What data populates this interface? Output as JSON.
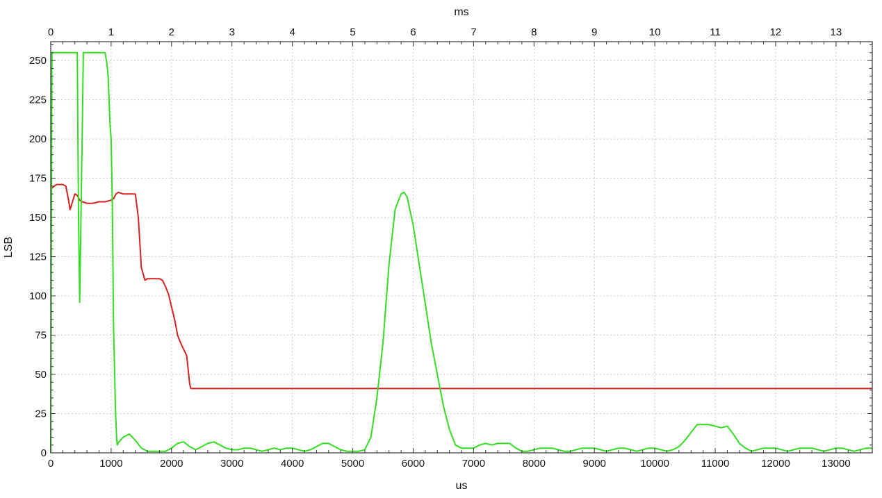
{
  "chart_data": {
    "type": "line",
    "title": "",
    "xlabel": "us",
    "x2label": "ms",
    "ylabel": "LSB",
    "xlim": [
      0,
      13600
    ],
    "x2lim": [
      0,
      13.6
    ],
    "ylim": [
      0,
      262
    ],
    "grid": true,
    "legend": "none",
    "x_ticks": [
      0,
      1000,
      2000,
      3000,
      4000,
      5000,
      6000,
      7000,
      8000,
      9000,
      10000,
      11000,
      12000,
      13000
    ],
    "x2_ticks": [
      0,
      1,
      2,
      3,
      4,
      5,
      6,
      7,
      8,
      9,
      10,
      11,
      12,
      13
    ],
    "y_ticks": [
      0,
      25,
      50,
      75,
      100,
      125,
      150,
      175,
      200,
      225,
      250
    ],
    "series": [
      {
        "color": "#d42020",
        "points": [
          [
            0,
            168
          ],
          [
            60,
            170
          ],
          [
            100,
            171
          ],
          [
            200,
            171
          ],
          [
            250,
            170
          ],
          [
            300,
            160
          ],
          [
            320,
            155
          ],
          [
            360,
            160
          ],
          [
            400,
            165
          ],
          [
            440,
            164
          ],
          [
            480,
            161
          ],
          [
            520,
            160
          ],
          [
            600,
            159
          ],
          [
            700,
            159
          ],
          [
            800,
            160
          ],
          [
            900,
            160
          ],
          [
            1000,
            161
          ],
          [
            1040,
            162
          ],
          [
            1080,
            165
          ],
          [
            1120,
            166
          ],
          [
            1200,
            165
          ],
          [
            1300,
            165
          ],
          [
            1400,
            165
          ],
          [
            1450,
            150
          ],
          [
            1500,
            118
          ],
          [
            1560,
            110
          ],
          [
            1600,
            111
          ],
          [
            1700,
            111
          ],
          [
            1800,
            111
          ],
          [
            1850,
            110
          ],
          [
            1900,
            106
          ],
          [
            1950,
            101
          ],
          [
            2000,
            93
          ],
          [
            2050,
            85
          ],
          [
            2100,
            75
          ],
          [
            2150,
            70
          ],
          [
            2200,
            66
          ],
          [
            2250,
            62
          ],
          [
            2300,
            44
          ],
          [
            2320,
            41
          ],
          [
            3000,
            41
          ],
          [
            4000,
            41
          ],
          [
            5000,
            41
          ],
          [
            6000,
            41
          ],
          [
            7000,
            41
          ],
          [
            8000,
            41
          ],
          [
            9000,
            41
          ],
          [
            10000,
            41
          ],
          [
            11000,
            41
          ],
          [
            12000,
            41
          ],
          [
            13000,
            41
          ],
          [
            13600,
            41
          ]
        ]
      },
      {
        "color": "#33dd22",
        "points": [
          [
            0,
            0
          ],
          [
            20,
            255
          ],
          [
            100,
            255
          ],
          [
            200,
            255
          ],
          [
            300,
            255
          ],
          [
            400,
            255
          ],
          [
            440,
            255
          ],
          [
            450,
            200
          ],
          [
            460,
            150
          ],
          [
            480,
            96
          ],
          [
            500,
            150
          ],
          [
            520,
            200
          ],
          [
            540,
            255
          ],
          [
            600,
            255
          ],
          [
            700,
            255
          ],
          [
            800,
            255
          ],
          [
            900,
            255
          ],
          [
            930,
            248
          ],
          [
            950,
            240
          ],
          [
            980,
            210
          ],
          [
            1000,
            200
          ],
          [
            1020,
            160
          ],
          [
            1040,
            80
          ],
          [
            1070,
            30
          ],
          [
            1090,
            10
          ],
          [
            1100,
            5
          ],
          [
            1130,
            7
          ],
          [
            1200,
            10
          ],
          [
            1300,
            12
          ],
          [
            1400,
            8
          ],
          [
            1500,
            3
          ],
          [
            1600,
            1
          ],
          [
            1700,
            1
          ],
          [
            1800,
            1
          ],
          [
            1900,
            1
          ],
          [
            2000,
            3
          ],
          [
            2100,
            6
          ],
          [
            2200,
            7
          ],
          [
            2300,
            4
          ],
          [
            2400,
            2
          ],
          [
            2500,
            4
          ],
          [
            2600,
            6
          ],
          [
            2700,
            7
          ],
          [
            2800,
            5
          ],
          [
            2900,
            3
          ],
          [
            3000,
            2
          ],
          [
            3100,
            2
          ],
          [
            3200,
            3
          ],
          [
            3300,
            3
          ],
          [
            3400,
            2
          ],
          [
            3500,
            1
          ],
          [
            3600,
            2
          ],
          [
            3700,
            3
          ],
          [
            3800,
            2
          ],
          [
            3900,
            3
          ],
          [
            4000,
            3
          ],
          [
            4100,
            2
          ],
          [
            4200,
            1
          ],
          [
            4300,
            2
          ],
          [
            4400,
            4
          ],
          [
            4500,
            6
          ],
          [
            4600,
            6
          ],
          [
            4700,
            4
          ],
          [
            4800,
            2
          ],
          [
            4900,
            1
          ],
          [
            5000,
            1
          ],
          [
            5100,
            1
          ],
          [
            5200,
            2
          ],
          [
            5300,
            10
          ],
          [
            5400,
            35
          ],
          [
            5500,
            70
          ],
          [
            5600,
            120
          ],
          [
            5700,
            155
          ],
          [
            5800,
            165
          ],
          [
            5850,
            166
          ],
          [
            5900,
            163
          ],
          [
            6000,
            145
          ],
          [
            6100,
            120
          ],
          [
            6200,
            95
          ],
          [
            6300,
            70
          ],
          [
            6400,
            50
          ],
          [
            6500,
            30
          ],
          [
            6600,
            15
          ],
          [
            6700,
            5
          ],
          [
            6800,
            3
          ],
          [
            6900,
            3
          ],
          [
            7000,
            3
          ],
          [
            7100,
            5
          ],
          [
            7200,
            6
          ],
          [
            7300,
            5
          ],
          [
            7400,
            6
          ],
          [
            7500,
            6
          ],
          [
            7600,
            6
          ],
          [
            7700,
            3
          ],
          [
            7800,
            1
          ],
          [
            7900,
            1
          ],
          [
            8000,
            2
          ],
          [
            8100,
            3
          ],
          [
            8200,
            3
          ],
          [
            8300,
            3
          ],
          [
            8400,
            2
          ],
          [
            8500,
            1
          ],
          [
            8600,
            1
          ],
          [
            8700,
            2
          ],
          [
            8800,
            3
          ],
          [
            8900,
            3
          ],
          [
            9000,
            3
          ],
          [
            9100,
            2
          ],
          [
            9200,
            1
          ],
          [
            9300,
            2
          ],
          [
            9400,
            3
          ],
          [
            9500,
            3
          ],
          [
            9600,
            2
          ],
          [
            9700,
            1
          ],
          [
            9800,
            2
          ],
          [
            9900,
            3
          ],
          [
            10000,
            3
          ],
          [
            10100,
            2
          ],
          [
            10200,
            1
          ],
          [
            10300,
            2
          ],
          [
            10400,
            4
          ],
          [
            10500,
            8
          ],
          [
            10600,
            13
          ],
          [
            10700,
            18
          ],
          [
            10800,
            18
          ],
          [
            10900,
            18
          ],
          [
            11000,
            17
          ],
          [
            11100,
            16
          ],
          [
            11200,
            17
          ],
          [
            11300,
            12
          ],
          [
            11400,
            6
          ],
          [
            11500,
            3
          ],
          [
            11600,
            1
          ],
          [
            11700,
            2
          ],
          [
            11800,
            3
          ],
          [
            11900,
            3
          ],
          [
            12000,
            3
          ],
          [
            12100,
            2
          ],
          [
            12200,
            1
          ],
          [
            12300,
            2
          ],
          [
            12400,
            3
          ],
          [
            12500,
            3
          ],
          [
            12600,
            3
          ],
          [
            12700,
            2
          ],
          [
            12800,
            1
          ],
          [
            12900,
            2
          ],
          [
            13000,
            3
          ],
          [
            13100,
            3
          ],
          [
            13200,
            2
          ],
          [
            13300,
            1
          ],
          [
            13400,
            2
          ],
          [
            13500,
            3
          ],
          [
            13600,
            3
          ]
        ]
      }
    ]
  }
}
